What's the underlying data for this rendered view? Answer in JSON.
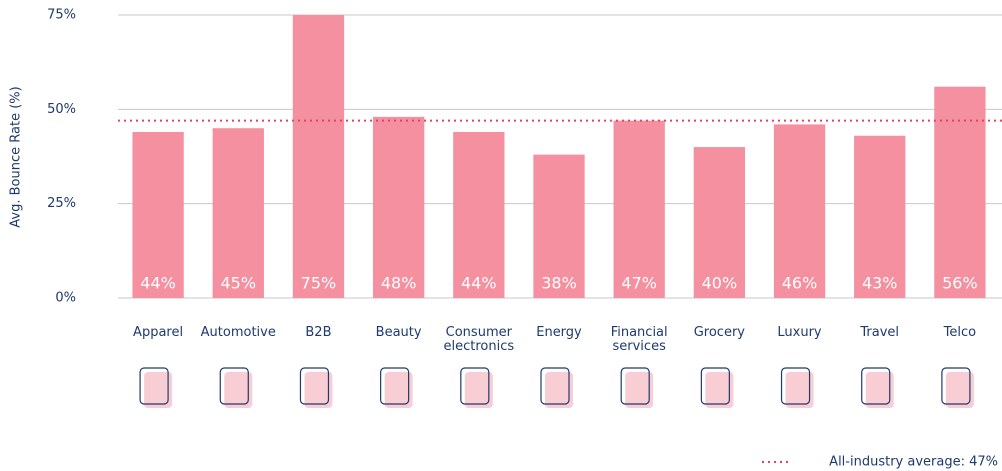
{
  "chart_data": {
    "type": "bar",
    "y_label": "Avg. Bounce Rate (%)",
    "categories": [
      "Apparel",
      "Automotive",
      "B2B",
      "Beauty",
      "Consumer electronics",
      "Energy",
      "Financial services",
      "Grocery",
      "Luxury",
      "Travel",
      "Telco"
    ],
    "values": [
      44,
      45,
      75,
      48,
      44,
      38,
      47,
      40,
      46,
      43,
      56
    ],
    "value_labels": [
      "44%",
      "45%",
      "75%",
      "48%",
      "44%",
      "38%",
      "47%",
      "40%",
      "46%",
      "43%",
      "56%"
    ],
    "color": "#f4909f",
    "ylim": [
      0,
      75
    ],
    "yticks": [
      {
        "value": 0,
        "label": "0%"
      },
      {
        "value": 25,
        "label": "25%"
      },
      {
        "value": 50,
        "label": "50%"
      },
      {
        "value": 75,
        "label": "75%"
      }
    ],
    "grid": true,
    "average": {
      "value": 47,
      "label": "All-industry average: 47%",
      "color": "#e8415f"
    }
  }
}
